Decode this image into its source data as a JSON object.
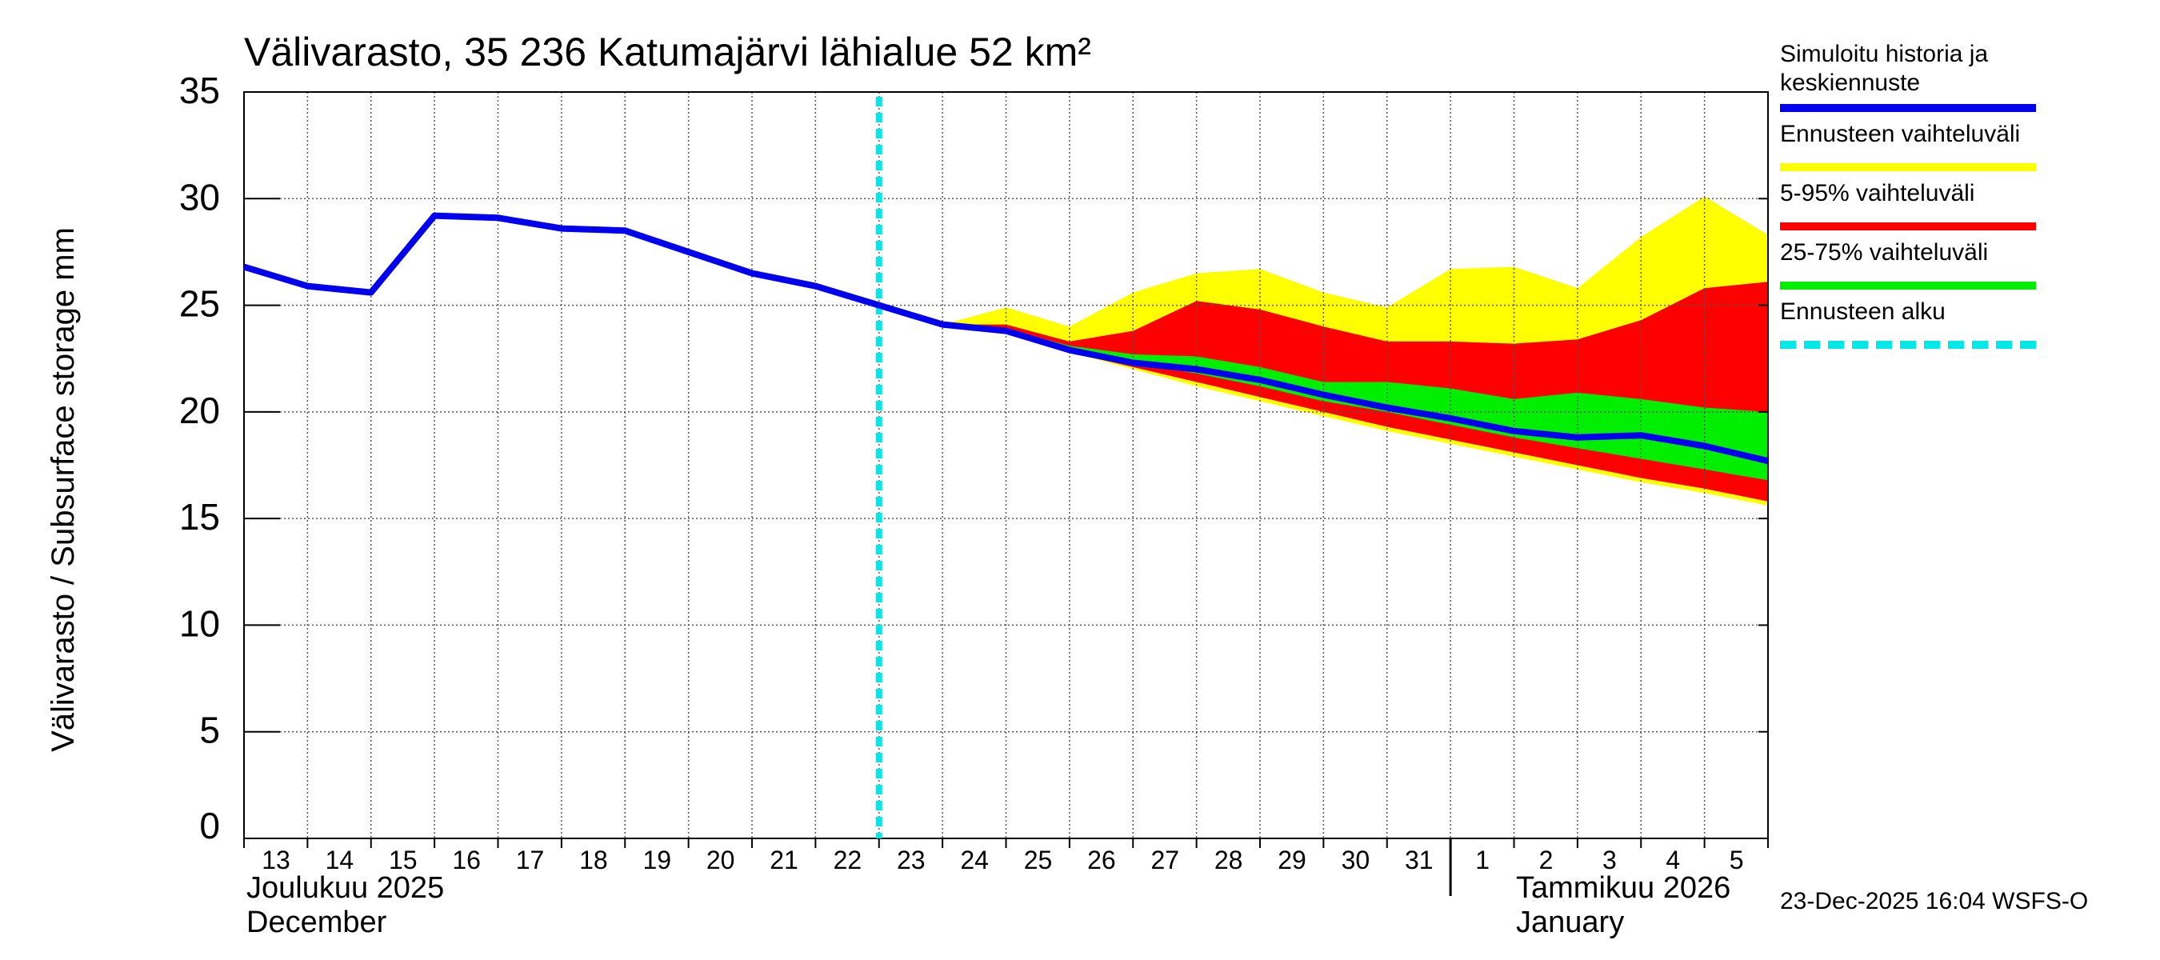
{
  "chart_data": {
    "type": "area",
    "title": "Välivarasto, 35 236 Katumajärvi lähialue 52 km²",
    "ylabel": "Välivarasto / Subsurface storage  mm",
    "ylim": [
      0,
      35
    ],
    "yticks": [
      "0",
      "5",
      "10",
      "15",
      "20",
      "25",
      "30",
      "35"
    ],
    "xlim": [
      13,
      37
    ],
    "x_ticks": [
      {
        "day": 13,
        "label": "13"
      },
      {
        "day": 14,
        "label": "14"
      },
      {
        "day": 15,
        "label": "15"
      },
      {
        "day": 16,
        "label": "16"
      },
      {
        "day": 17,
        "label": "17"
      },
      {
        "day": 18,
        "label": "18"
      },
      {
        "day": 19,
        "label": "19"
      },
      {
        "day": 20,
        "label": "20"
      },
      {
        "day": 21,
        "label": "21"
      },
      {
        "day": 22,
        "label": "22"
      },
      {
        "day": 23,
        "label": "23"
      },
      {
        "day": 24,
        "label": "24"
      },
      {
        "day": 25,
        "label": "25"
      },
      {
        "day": 26,
        "label": "26"
      },
      {
        "day": 27,
        "label": "27"
      },
      {
        "day": 28,
        "label": "28"
      },
      {
        "day": 29,
        "label": "29"
      },
      {
        "day": 30,
        "label": "30"
      },
      {
        "day": 31,
        "label": "31"
      },
      {
        "day": 32,
        "label": "1"
      },
      {
        "day": 33,
        "label": "2"
      },
      {
        "day": 34,
        "label": "3"
      },
      {
        "day": 35,
        "label": "4"
      },
      {
        "day": 36,
        "label": "5"
      }
    ],
    "month_labels": {
      "dec_fi": "Joulukuu  2025",
      "dec_en": "December",
      "jan_fi": "Tammikuu  2026",
      "jan_en": "January"
    },
    "month_boundary_day": 32,
    "forecast_start_day": 23,
    "history": {
      "x": [
        13,
        14,
        15,
        16,
        17,
        18,
        19,
        20,
        21,
        22,
        23,
        24,
        25,
        26,
        27,
        28,
        29,
        30,
        31,
        32,
        33,
        34,
        35,
        36,
        37
      ],
      "values": [
        26.8,
        25.9,
        25.6,
        29.2,
        29.1,
        28.6,
        28.5,
        27.5,
        26.5,
        25.9,
        25.0,
        24.1,
        23.8,
        22.9,
        22.3,
        22.0,
        21.5,
        20.8,
        20.2,
        19.7,
        19.1,
        18.8,
        18.9,
        18.4,
        17.7
      ]
    },
    "bands": {
      "x": [
        24,
        25,
        26,
        27,
        28,
        29,
        30,
        31,
        32,
        33,
        34,
        35,
        36,
        37
      ],
      "min": [
        24.1,
        23.7,
        22.8,
        22.0,
        21.2,
        20.5,
        19.8,
        19.1,
        18.5,
        17.9,
        17.3,
        16.7,
        16.2,
        15.6
      ],
      "p5": [
        24.1,
        23.7,
        22.8,
        22.1,
        21.4,
        20.7,
        20.0,
        19.3,
        18.7,
        18.1,
        17.5,
        16.9,
        16.4,
        15.8
      ],
      "p25": [
        24.1,
        23.8,
        22.9,
        22.3,
        21.8,
        21.2,
        20.5,
        20.0,
        19.4,
        18.8,
        18.3,
        17.8,
        17.3,
        16.8
      ],
      "p75": [
        24.1,
        23.9,
        23.1,
        22.7,
        22.6,
        22.1,
        21.4,
        21.4,
        21.1,
        20.6,
        20.9,
        20.6,
        20.2,
        20.0
      ],
      "p95": [
        24.1,
        24.1,
        23.3,
        23.8,
        25.2,
        24.8,
        24.0,
        23.3,
        23.3,
        23.2,
        23.4,
        24.3,
        25.8,
        26.1
      ],
      "max": [
        24.1,
        24.9,
        24.0,
        25.6,
        26.5,
        26.7,
        25.6,
        24.9,
        26.7,
        26.8,
        25.8,
        28.2,
        30.1,
        28.3
      ]
    },
    "colors": {
      "history": "#0000ee",
      "range": "#ffff00",
      "p5_95": "#ff0000",
      "p25_75": "#00ee00",
      "forecast_start": "#00e8e8",
      "grid": "#555555"
    }
  },
  "legend": [
    {
      "label": "Simuloitu historia ja keskiennuste",
      "color": "#0000ee"
    },
    {
      "label": "Ennusteen vaihteluväli",
      "color": "#ffff00"
    },
    {
      "label": "5-95% vaihteluväli",
      "color": "#ff0000"
    },
    {
      "label": "25-75% vaihteluväli",
      "color": "#00ee00"
    },
    {
      "label": "Ennusteen alku",
      "color": "#00e8e8"
    }
  ],
  "timestamp": "23-Dec-2025 16:04 WSFS-O"
}
